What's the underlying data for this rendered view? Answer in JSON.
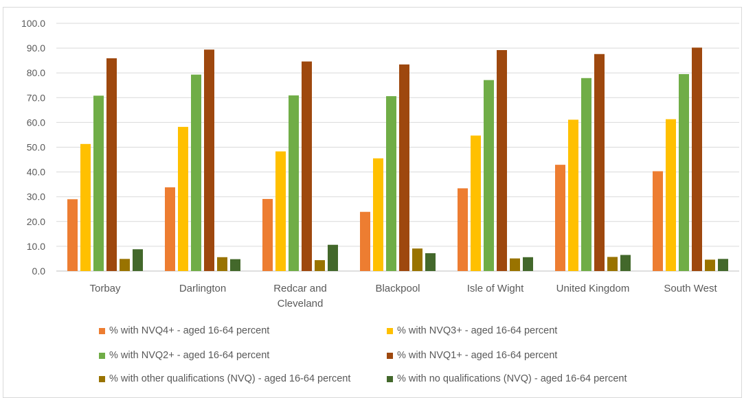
{
  "chart_data": {
    "type": "bar",
    "categories": [
      "Torbay",
      "Darlington",
      "Redcar and Cleveland",
      "Blackpool",
      "Isle of Wight",
      "United Kingdom",
      "South West"
    ],
    "category_lines": [
      [
        "Torbay"
      ],
      [
        "Darlington"
      ],
      [
        "Redcar and",
        "Cleveland"
      ],
      [
        "Blackpool"
      ],
      [
        "Isle of Wight"
      ],
      [
        "United Kingdom"
      ],
      [
        "South West"
      ]
    ],
    "series": [
      {
        "name": "% with NVQ4+ - aged 16-64 percent",
        "color": "#ED7D31",
        "values": [
          29.0,
          33.8,
          29.1,
          23.9,
          33.4,
          42.9,
          40.3
        ]
      },
      {
        "name": "% with NVQ3+ - aged 16-64 percent",
        "color": "#FFC000",
        "values": [
          51.3,
          58.2,
          48.3,
          45.5,
          54.7,
          61.1,
          61.3
        ]
      },
      {
        "name": "% with NVQ2+ - aged 16-64 percent",
        "color": "#70AD47",
        "values": [
          70.8,
          79.3,
          70.9,
          70.6,
          77.1,
          77.9,
          79.5
        ]
      },
      {
        "name": "% with NVQ1+ - aged 16-64 percent",
        "color": "#9E480E",
        "values": [
          85.9,
          89.4,
          84.6,
          83.4,
          89.2,
          87.6,
          90.2
        ]
      },
      {
        "name": "% with other qualifications (NVQ) - aged 16-64 percent",
        "color": "#997300",
        "values": [
          4.9,
          5.6,
          4.4,
          9.1,
          5.1,
          5.7,
          4.6
        ]
      },
      {
        "name": "% with no qualifications (NVQ) - aged 16-64 percent",
        "color": "#43682B",
        "values": [
          8.8,
          4.8,
          10.6,
          7.2,
          5.6,
          6.5,
          4.9
        ]
      }
    ],
    "yticks": [
      "0.0",
      "10.0",
      "20.0",
      "30.0",
      "40.0",
      "50.0",
      "60.0",
      "70.0",
      "80.0",
      "90.0",
      "100.0"
    ],
    "ylim": [
      0,
      100
    ],
    "grid": true,
    "legend_position": "bottom"
  }
}
